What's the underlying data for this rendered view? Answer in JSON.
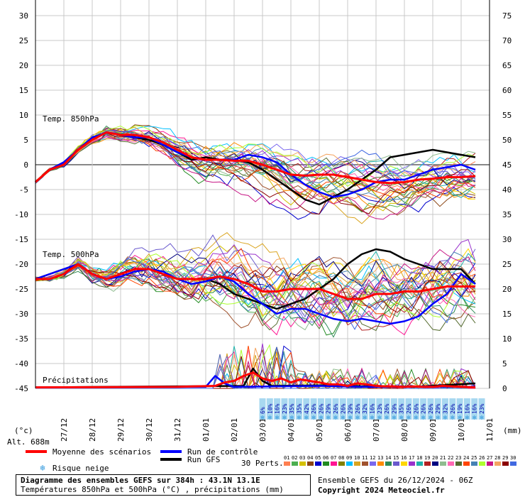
{
  "chart_data": {
    "type": "line",
    "x_ticks": [
      "27/12",
      "28/12",
      "29/12",
      "30/12",
      "31/12",
      "01/01",
      "02/01",
      "03/01",
      "04/01",
      "05/01",
      "06/01",
      "07/01",
      "08/01",
      "09/01",
      "10/01",
      "11/01"
    ],
    "y_left_ticks": [
      "30",
      "25",
      "20",
      "15",
      "10",
      "5",
      "0",
      "-5",
      "-10",
      "-15",
      "-20",
      "-25",
      "-30",
      "-35",
      "-40",
      "-45"
    ],
    "y_right_ticks": [
      "75",
      "70",
      "65",
      "60",
      "55",
      "50",
      "45",
      "40",
      "35",
      "30",
      "25",
      "20",
      "15",
      "10",
      "5",
      "0"
    ],
    "y_left_unit": "(°c)",
    "y_right_unit": "(mm)",
    "altitude": "Alt. 688m",
    "panel_labels": {
      "t850": "Temp. 850hPa",
      "t500": "Temp. 500hPa",
      "precip": "Précipitations"
    },
    "snow_risk_percent": [
      "6%",
      "10%",
      "16%",
      "23%",
      "35%",
      "35%",
      "42%",
      "26%",
      "26%",
      "29%",
      "26%",
      "26%",
      "29%",
      "26%",
      "32%",
      "16%",
      "23%",
      "26%",
      "29%",
      "35%",
      "26%",
      "26%",
      "26%",
      "26%",
      "29%",
      "32%",
      "26%",
      "19%",
      "16%",
      "16%",
      "23%"
    ],
    "series": [
      {
        "name": "Moyenne des scénarios",
        "color": "#ff0000",
        "t850": [
          [
            0,
            -3.5
          ],
          [
            3,
            -1
          ],
          [
            6,
            0
          ],
          [
            9,
            3
          ],
          [
            12,
            5
          ],
          [
            15,
            6.5
          ],
          [
            18,
            6
          ],
          [
            21,
            6
          ],
          [
            24,
            5.5
          ],
          [
            27,
            4.5
          ],
          [
            30,
            3
          ],
          [
            33,
            1.5
          ],
          [
            36,
            1
          ],
          [
            39,
            1
          ],
          [
            42,
            0.8
          ],
          [
            45,
            0.8
          ],
          [
            48,
            0
          ],
          [
            51,
            -1
          ],
          [
            54,
            -2
          ],
          [
            57,
            -2.2
          ],
          [
            60,
            -2
          ],
          [
            63,
            -2
          ],
          [
            66,
            -2.5
          ],
          [
            69,
            -3
          ],
          [
            72,
            -3.5
          ],
          [
            75,
            -3.7
          ],
          [
            78,
            -3.5
          ],
          [
            81,
            -3
          ],
          [
            84,
            -2.8
          ],
          [
            87,
            -2.5
          ],
          [
            90,
            -2.5
          ],
          [
            93,
            -2.3
          ]
        ],
        "t500": [
          [
            0,
            -23
          ],
          [
            3,
            -23
          ],
          [
            6,
            -22
          ],
          [
            9,
            -20
          ],
          [
            12,
            -22
          ],
          [
            15,
            -23
          ],
          [
            18,
            -22
          ],
          [
            21,
            -21
          ],
          [
            24,
            -21
          ],
          [
            27,
            -22
          ],
          [
            30,
            -23
          ],
          [
            33,
            -23
          ],
          [
            36,
            -23
          ],
          [
            39,
            -22.5
          ],
          [
            42,
            -23
          ],
          [
            45,
            -24
          ],
          [
            48,
            -25.5
          ],
          [
            51,
            -25.5
          ],
          [
            54,
            -25
          ],
          [
            57,
            -25
          ],
          [
            60,
            -25
          ],
          [
            63,
            -26
          ],
          [
            66,
            -27
          ],
          [
            69,
            -27
          ],
          [
            72,
            -26
          ],
          [
            75,
            -26
          ],
          [
            78,
            -25.5
          ],
          [
            81,
            -25.5
          ],
          [
            84,
            -25
          ],
          [
            87,
            -24.5
          ],
          [
            90,
            -24.5
          ],
          [
            93,
            -24.5
          ]
        ],
        "precip": [
          [
            0,
            0.2
          ],
          [
            30,
            0.3
          ],
          [
            38,
            0.5
          ],
          [
            40,
            1.2
          ],
          [
            42,
            1.5
          ],
          [
            44,
            2.5
          ],
          [
            46,
            3.2
          ],
          [
            48,
            2
          ],
          [
            50,
            1.5
          ],
          [
            52,
            2
          ],
          [
            54,
            1.2
          ],
          [
            56,
            1.8
          ],
          [
            58,
            1.5
          ],
          [
            60,
            1.2
          ],
          [
            62,
            0.8
          ],
          [
            64,
            0.8
          ],
          [
            66,
            0.5
          ],
          [
            68,
            1
          ],
          [
            70,
            0.8
          ],
          [
            72,
            0.5
          ],
          [
            74,
            0.4
          ],
          [
            76,
            0.4
          ],
          [
            78,
            0.3
          ],
          [
            80,
            0.4
          ],
          [
            82,
            0.3
          ],
          [
            84,
            0.3
          ],
          [
            86,
            0.5
          ],
          [
            88,
            0.4
          ],
          [
            90,
            0.3
          ],
          [
            93,
            0.2
          ]
        ]
      },
      {
        "name": "Run de contrôle",
        "color": "#0000ff",
        "t850": [
          [
            0,
            -3.5
          ],
          [
            3,
            -1
          ],
          [
            6,
            0.5
          ],
          [
            9,
            3
          ],
          [
            12,
            5.5
          ],
          [
            15,
            6.5
          ],
          [
            18,
            6
          ],
          [
            21,
            5.5
          ],
          [
            24,
            5.5
          ],
          [
            27,
            4
          ],
          [
            30,
            2.5
          ],
          [
            33,
            1.5
          ],
          [
            36,
            1
          ],
          [
            39,
            1
          ],
          [
            42,
            1
          ],
          [
            45,
            2
          ],
          [
            48,
            1.5
          ],
          [
            51,
            0.5
          ],
          [
            54,
            -2
          ],
          [
            57,
            -4
          ],
          [
            60,
            -5.5
          ],
          [
            63,
            -6.5
          ],
          [
            66,
            -6
          ],
          [
            69,
            -5
          ],
          [
            72,
            -3.5
          ],
          [
            75,
            -3
          ],
          [
            78,
            -3
          ],
          [
            81,
            -2
          ],
          [
            84,
            -1
          ],
          [
            87,
            -0.5
          ],
          [
            90,
            0
          ],
          [
            93,
            -1
          ]
        ],
        "t500": [
          [
            0,
            -23
          ],
          [
            3,
            -22
          ],
          [
            6,
            -21
          ],
          [
            9,
            -20
          ],
          [
            12,
            -22
          ],
          [
            15,
            -23
          ],
          [
            18,
            -22.5
          ],
          [
            21,
            -21.5
          ],
          [
            24,
            -21
          ],
          [
            27,
            -21.5
          ],
          [
            30,
            -23
          ],
          [
            33,
            -24
          ],
          [
            36,
            -23.5
          ],
          [
            39,
            -22.5
          ],
          [
            42,
            -23.5
          ],
          [
            45,
            -26
          ],
          [
            48,
            -28
          ],
          [
            51,
            -30
          ],
          [
            54,
            -29
          ],
          [
            57,
            -29
          ],
          [
            60,
            -30
          ],
          [
            63,
            -31
          ],
          [
            66,
            -31.5
          ],
          [
            69,
            -31
          ],
          [
            72,
            -31.5
          ],
          [
            75,
            -32
          ],
          [
            78,
            -31.5
          ],
          [
            81,
            -30.5
          ],
          [
            84,
            -28
          ],
          [
            87,
            -26
          ],
          [
            90,
            -22
          ],
          [
            93,
            -24
          ]
        ],
        "precip": [
          [
            0,
            0.2
          ],
          [
            36,
            0.3
          ],
          [
            38,
            2.5
          ],
          [
            40,
            1
          ],
          [
            42,
            0.3
          ],
          [
            50,
            0.4
          ],
          [
            60,
            0.5
          ],
          [
            70,
            0.3
          ],
          [
            80,
            0.4
          ],
          [
            93,
            0.3
          ]
        ]
      },
      {
        "name": "Run GFS",
        "color": "#000000",
        "t850": [
          [
            0,
            -3.5
          ],
          [
            3,
            -1
          ],
          [
            6,
            0.5
          ],
          [
            9,
            3
          ],
          [
            12,
            5
          ],
          [
            15,
            6.5
          ],
          [
            18,
            6
          ],
          [
            21,
            5.5
          ],
          [
            24,
            5
          ],
          [
            27,
            4
          ],
          [
            30,
            2.5
          ],
          [
            33,
            1
          ],
          [
            36,
            1.5
          ],
          [
            39,
            1
          ],
          [
            42,
            1
          ],
          [
            45,
            0.5
          ],
          [
            48,
            -1
          ],
          [
            51,
            -3
          ],
          [
            54,
            -5
          ],
          [
            57,
            -7
          ],
          [
            60,
            -8
          ],
          [
            63,
            -6.5
          ],
          [
            66,
            -5
          ],
          [
            69,
            -3
          ],
          [
            72,
            -1
          ],
          [
            75,
            1.5
          ],
          [
            78,
            2
          ],
          [
            81,
            2.5
          ],
          [
            84,
            3
          ],
          [
            87,
            2.5
          ],
          [
            90,
            2
          ],
          [
            93,
            1.5
          ]
        ],
        "t500": [
          [
            0,
            -23
          ],
          [
            3,
            -22
          ],
          [
            6,
            -21
          ],
          [
            9,
            -20
          ],
          [
            12,
            -22
          ],
          [
            15,
            -23
          ],
          [
            18,
            -22
          ],
          [
            21,
            -21
          ],
          [
            24,
            -21
          ],
          [
            27,
            -22
          ],
          [
            30,
            -23
          ],
          [
            33,
            -23
          ],
          [
            36,
            -23
          ],
          [
            39,
            -24
          ],
          [
            42,
            -26
          ],
          [
            45,
            -27
          ],
          [
            48,
            -28
          ],
          [
            51,
            -29
          ],
          [
            54,
            -28
          ],
          [
            57,
            -27
          ],
          [
            60,
            -25
          ],
          [
            63,
            -23
          ],
          [
            66,
            -20
          ],
          [
            69,
            -18
          ],
          [
            72,
            -17
          ],
          [
            75,
            -17.5
          ],
          [
            78,
            -19
          ],
          [
            81,
            -20
          ],
          [
            84,
            -21
          ],
          [
            87,
            -21
          ],
          [
            90,
            -21
          ],
          [
            93,
            -24
          ]
        ],
        "precip": [
          [
            0,
            0.2
          ],
          [
            44,
            0.5
          ],
          [
            46,
            4
          ],
          [
            48,
            1.5
          ],
          [
            50,
            0.5
          ],
          [
            60,
            0.6
          ],
          [
            70,
            0.4
          ],
          [
            80,
            0.3
          ],
          [
            93,
            1
          ]
        ]
      }
    ],
    "members_count": 30,
    "member_colors": [
      "#ff7f50",
      "#4caf50",
      "#d4c000",
      "#8b4513",
      "#0000cd",
      "#228b22",
      "#ff1493",
      "#808000",
      "#00bfff",
      "#daa520",
      "#a0522d",
      "#7b68ee",
      "#ff8c00",
      "#2e8b57",
      "#6a5acd",
      "#ffd700",
      "#9932cc",
      "#20b2aa",
      "#b22222",
      "#000080",
      "#8fbc8f",
      "#ff69b4",
      "#556b2f",
      "#ff4500",
      "#4682b4",
      "#adff2f",
      "#c71585",
      "#f4a460",
      "#8b0000",
      "#4169e1"
    ],
    "xlim": [
      0,
      96
    ],
    "t_ylim": [
      -45,
      30
    ],
    "precip_ylim": [
      0,
      30
    ]
  },
  "legend": {
    "mean_label": "Moyenne des scénarios",
    "control_label": "Run de contrôle",
    "gfs_label": "Run GFS",
    "snow_label": "Risque neige",
    "perts_label": "30 Perts.",
    "member_numbers": [
      "01",
      "02",
      "03",
      "04",
      "05",
      "06",
      "07",
      "08",
      "09",
      "10",
      "11",
      "12",
      "13",
      "14",
      "15",
      "16",
      "17",
      "18",
      "19",
      "20",
      "21",
      "22",
      "23",
      "24",
      "25",
      "26",
      "27",
      "28",
      "29",
      "30"
    ]
  },
  "footer": {
    "title": "Diagramme des ensembles GEFS sur 384h : 43.1N 13.1E",
    "subtitle": "Températures 850hPa et 500hPa (°C) , précipitations (mm)",
    "run": "Ensemble GEFS du 26/12/2024 - 06Z",
    "copyright": "Copyright 2024 Meteociel.fr"
  }
}
